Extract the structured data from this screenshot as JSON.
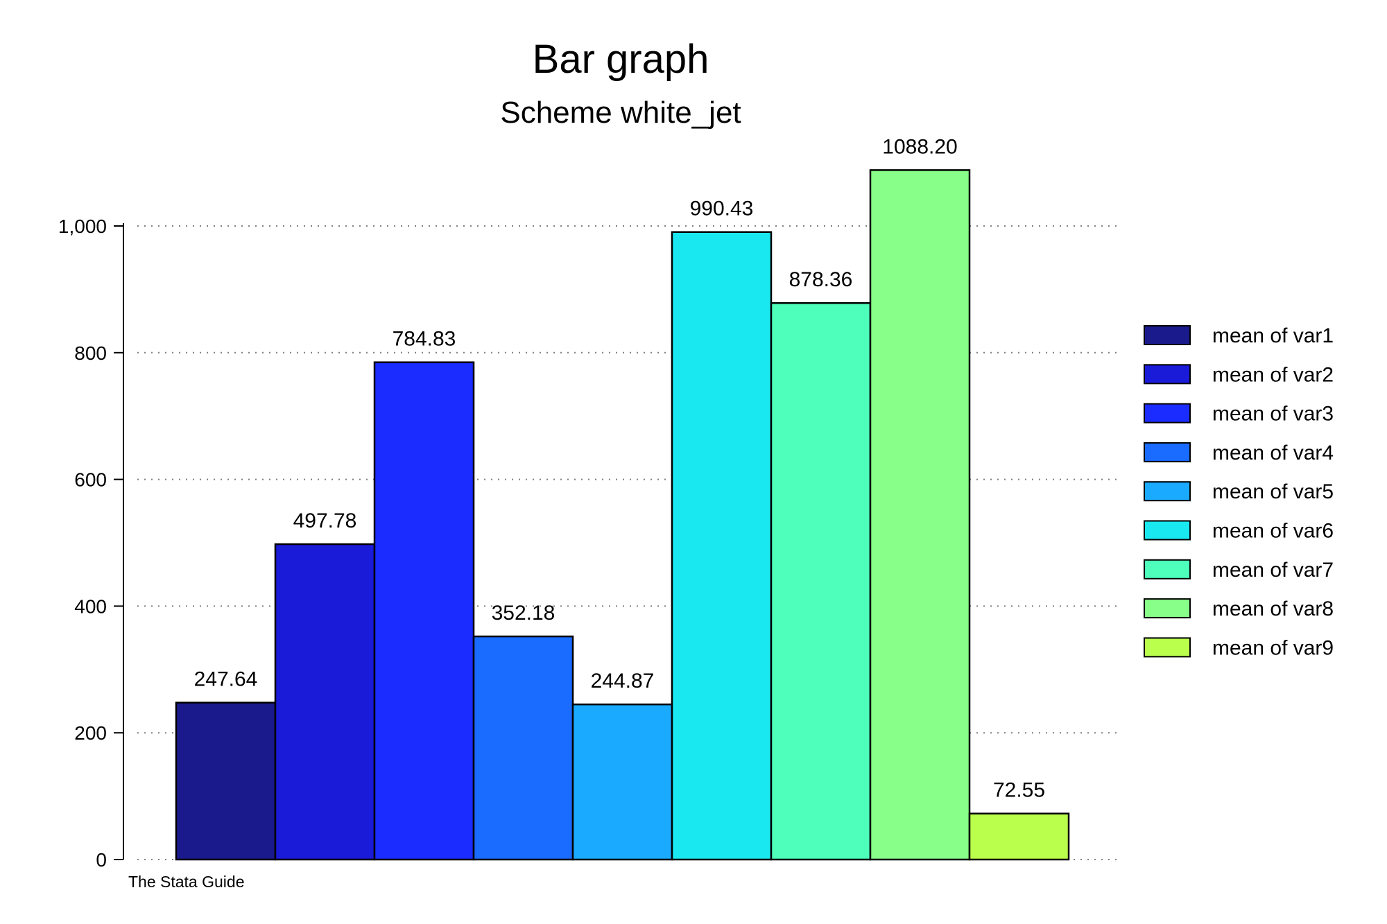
{
  "chart_data": {
    "type": "bar",
    "title": "Bar graph",
    "subtitle": "Scheme white_jet",
    "note": "The Stata Guide",
    "xlabel": "",
    "ylabel": "",
    "ylim": [
      0,
      1100
    ],
    "yticks": [
      0,
      200,
      400,
      600,
      800,
      1000
    ],
    "ytick_labels": [
      "0",
      "200",
      "400",
      "600",
      "800",
      "1,000"
    ],
    "grid": true,
    "legend_position": "right",
    "series": [
      {
        "name": "mean of var1",
        "value": 247.64,
        "label": "247.64",
        "color": "#1a1a8c"
      },
      {
        "name": "mean of var2",
        "value": 497.78,
        "label": "497.78",
        "color": "#1a1ad9"
      },
      {
        "name": "mean of var3",
        "value": 784.83,
        "label": "784.83",
        "color": "#1a2cff"
      },
      {
        "name": "mean of var4",
        "value": 352.18,
        "label": "352.18",
        "color": "#1a6bff"
      },
      {
        "name": "mean of var5",
        "value": 244.87,
        "label": "244.87",
        "color": "#1aaaff"
      },
      {
        "name": "mean of var6",
        "value": 990.43,
        "label": "990.43",
        "color": "#1ae8f0"
      },
      {
        "name": "mean of var7",
        "value": 878.36,
        "label": "878.36",
        "color": "#4dffbb"
      },
      {
        "name": "mean of var8",
        "value": 1088.2,
        "label": "1088.20",
        "color": "#88ff88"
      },
      {
        "name": "mean of var9",
        "value": 72.55,
        "label": "72.55",
        "color": "#bbff4d"
      }
    ]
  }
}
